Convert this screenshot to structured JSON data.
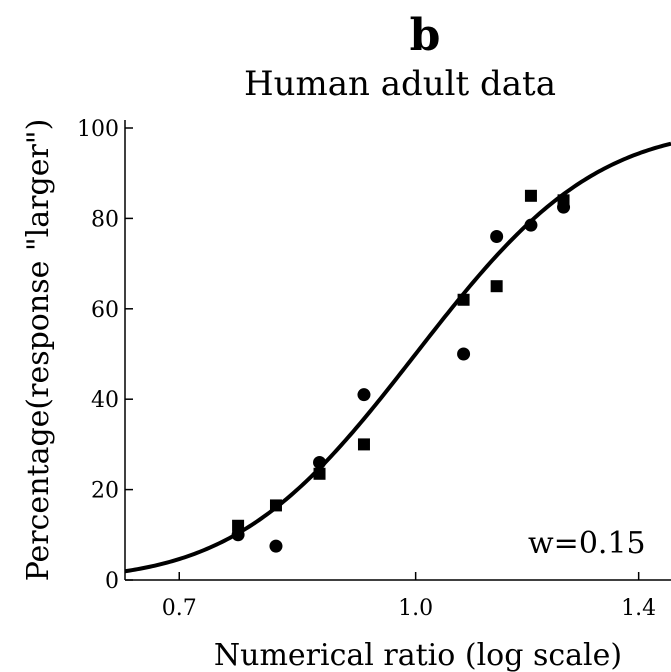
{
  "panel_label": "b",
  "chart_data": {
    "type": "scatter",
    "title": "Human adult data",
    "xlabel": "Numerical ratio (log scale)",
    "ylabel": "Percentage(response \"larger\")",
    "x_scale": "log",
    "xlim": [
      0.645,
      1.47
    ],
    "ylim": [
      0,
      100
    ],
    "x_ticks": [
      0.7,
      1.0,
      1.4
    ],
    "x_tick_labels": [
      "0.7",
      "1.0",
      "1.4"
    ],
    "y_ticks": [
      0,
      20,
      40,
      60,
      80,
      100
    ],
    "y_tick_labels": [
      "0",
      "20",
      "40",
      "60",
      "80",
      "100"
    ],
    "grid": false,
    "annotation": "w=0.15",
    "series": [
      {
        "marker": "square",
        "x": [
          0.765,
          0.81,
          0.865,
          0.925,
          1.075,
          1.13,
          1.19,
          1.25
        ],
        "y": [
          12,
          16.5,
          23.5,
          30,
          62,
          65,
          85,
          84
        ]
      },
      {
        "marker": "circle",
        "x": [
          0.765,
          0.81,
          0.865,
          0.925,
          1.075,
          1.13,
          1.19,
          1.25
        ],
        "y": [
          10,
          7.5,
          26,
          41,
          50,
          76,
          78.5,
          82.5
        ]
      },
      {
        "marker": "line",
        "function": "cumulative normal of log(ratio)",
        "w": 0.15
      }
    ]
  }
}
